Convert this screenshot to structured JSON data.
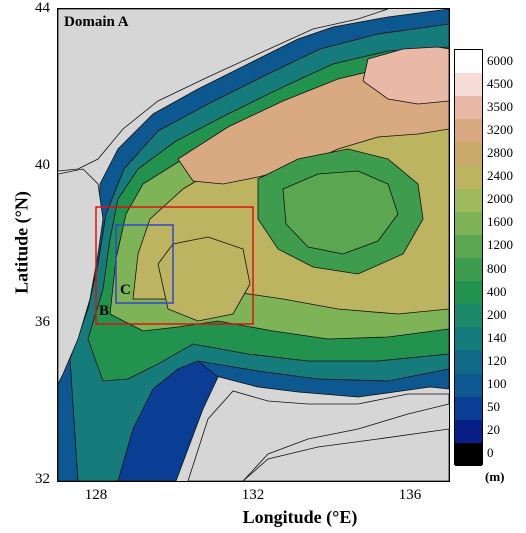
{
  "map": {
    "title": "Domain A",
    "xlabel": "Longitude (°E)",
    "ylabel": "Latitude (°N)",
    "x_ticks": [
      "128",
      "132",
      "136"
    ],
    "y_ticks": [
      "44",
      "40",
      "36",
      "32"
    ],
    "box_labels": {
      "b": "B",
      "c": "C"
    },
    "box_colors": {
      "b": "#e01010",
      "c": "#3344cc"
    },
    "land_color": "#d6d6d6"
  },
  "colorbar": {
    "unit": "(m)",
    "levels": [
      "6000",
      "4500",
      "3500",
      "3200",
      "2800",
      "2400",
      "2000",
      "1600",
      "1200",
      "800",
      "400",
      "200",
      "140",
      "120",
      "100",
      "50",
      "20",
      "0"
    ],
    "colors": [
      "#ffffff",
      "#f6dcd6",
      "#e9b8a6",
      "#d9a982",
      "#c9aa6a",
      "#bcb460",
      "#9fba5d",
      "#7eb457",
      "#5aa651",
      "#3e9c4e",
      "#22934f",
      "#1a8a68",
      "#157c7b",
      "#116b88",
      "#0d5891",
      "#0a3e94",
      "#071f86",
      "#000000"
    ]
  }
}
